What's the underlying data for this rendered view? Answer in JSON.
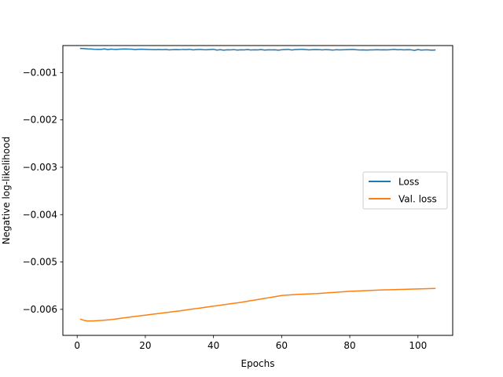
{
  "chart_data": {
    "type": "line",
    "xlabel": "Epochs",
    "ylabel": "Negative log-likelihood",
    "xlim": [
      -4.2,
      110.2
    ],
    "ylim": [
      -0.00655,
      -0.00043
    ],
    "xticks": [
      0,
      20,
      40,
      60,
      80,
      100
    ],
    "xtick_labels": [
      "0",
      "20",
      "40",
      "60",
      "80",
      "100"
    ],
    "yticks": [
      -0.001,
      -0.002,
      -0.003,
      -0.004,
      -0.005,
      -0.006
    ],
    "ytick_labels": [
      "−0.001",
      "−0.002",
      "−0.003",
      "−0.004",
      "−0.005",
      "−0.006"
    ],
    "grid": false,
    "legend_position": "center-right",
    "x": [
      1,
      2,
      3,
      4,
      5,
      6,
      7,
      8,
      9,
      10,
      11,
      12,
      13,
      14,
      15,
      16,
      17,
      18,
      19,
      20,
      21,
      22,
      23,
      24,
      25,
      26,
      27,
      28,
      29,
      30,
      31,
      32,
      33,
      34,
      35,
      36,
      37,
      38,
      39,
      40,
      41,
      42,
      43,
      44,
      45,
      46,
      47,
      48,
      49,
      50,
      51,
      52,
      53,
      54,
      55,
      56,
      57,
      58,
      59,
      60,
      61,
      62,
      63,
      64,
      65,
      66,
      67,
      68,
      69,
      70,
      71,
      72,
      73,
      74,
      75,
      76,
      77,
      78,
      79,
      80,
      81,
      82,
      83,
      84,
      85,
      86,
      87,
      88,
      89,
      90,
      91,
      92,
      93,
      94,
      95,
      96,
      97,
      98,
      99,
      100,
      101,
      102,
      103,
      104,
      105
    ],
    "series": [
      {
        "name": "Loss",
        "color": "#1f77b4",
        "values": [
          -0.00049,
          -0.000495,
          -0.0005,
          -0.000502,
          -0.000508,
          -0.000511,
          -0.00051,
          -0.0005,
          -0.000515,
          -0.000505,
          -0.000512,
          -0.000508,
          -0.000505,
          -0.000503,
          -0.000504,
          -0.000506,
          -0.000515,
          -0.000508,
          -0.000507,
          -0.00051,
          -0.000512,
          -0.000515,
          -0.000517,
          -0.000514,
          -0.000518,
          -0.000513,
          -0.000522,
          -0.000517,
          -0.000515,
          -0.000518,
          -0.000512,
          -0.000515,
          -0.00051,
          -0.000521,
          -0.000515,
          -0.000512,
          -0.000517,
          -0.00052,
          -0.000515,
          -0.00051,
          -0.000525,
          -0.000517,
          -0.000528,
          -0.000519,
          -0.000522,
          -0.000516,
          -0.000525,
          -0.00052,
          -0.000521,
          -0.000515,
          -0.000524,
          -0.000519,
          -0.000522,
          -0.000515,
          -0.000525,
          -0.00052,
          -0.000521,
          -0.000519,
          -0.000528,
          -0.000519,
          -0.000515,
          -0.000512,
          -0.000523,
          -0.000515,
          -0.000512,
          -0.00051,
          -0.000515,
          -0.000521,
          -0.000518,
          -0.000515,
          -0.000518,
          -0.000522,
          -0.000516,
          -0.00052,
          -0.000525,
          -0.000518,
          -0.000521,
          -0.000519,
          -0.000516,
          -0.000515,
          -0.000513,
          -0.00052,
          -0.000523,
          -0.000522,
          -0.000526,
          -0.000521,
          -0.000522,
          -0.000517,
          -0.000522,
          -0.000519,
          -0.000522,
          -0.000518,
          -0.000511,
          -0.000519,
          -0.000516,
          -0.000521,
          -0.000518,
          -0.00052,
          -0.000532,
          -0.000515,
          -0.000525,
          -0.000522,
          -0.000521,
          -0.000527,
          -0.000524
        ]
      },
      {
        "name": "Val. loss",
        "color": "#ff7f0e",
        "values": [
          -0.00621,
          -0.006232,
          -0.006245,
          -0.006246,
          -0.006243,
          -0.00624,
          -0.006235,
          -0.006229,
          -0.006223,
          -0.006216,
          -0.006207,
          -0.006198,
          -0.006188,
          -0.006178,
          -0.006168,
          -0.006159,
          -0.00615,
          -0.006141,
          -0.006132,
          -0.006123,
          -0.006114,
          -0.006105,
          -0.006096,
          -0.006087,
          -0.006078,
          -0.006069,
          -0.00606,
          -0.006051,
          -0.006042,
          -0.006033,
          -0.006023,
          -0.006013,
          -0.006003,
          -0.005993,
          -0.005983,
          -0.005973,
          -0.005963,
          -0.005953,
          -0.005943,
          -0.005933,
          -0.005923,
          -0.005913,
          -0.005903,
          -0.005893,
          -0.005883,
          -0.005873,
          -0.005863,
          -0.005853,
          -0.005841,
          -0.005829,
          -0.005817,
          -0.005805,
          -0.005793,
          -0.005781,
          -0.005769,
          -0.005757,
          -0.005745,
          -0.005733,
          -0.005721,
          -0.005709,
          -0.005702,
          -0.005697,
          -0.005692,
          -0.005688,
          -0.005684,
          -0.005681,
          -0.005678,
          -0.005675,
          -0.005672,
          -0.005669,
          -0.005664,
          -0.005659,
          -0.005654,
          -0.005649,
          -0.005644,
          -0.005639,
          -0.005634,
          -0.005629,
          -0.005624,
          -0.005619,
          -0.005616,
          -0.005613,
          -0.00561,
          -0.005607,
          -0.005604,
          -0.005601,
          -0.005598,
          -0.005595,
          -0.005592,
          -0.005589,
          -0.005587,
          -0.005585,
          -0.005583,
          -0.005581,
          -0.005579,
          -0.005577,
          -0.005575,
          -0.005573,
          -0.005571,
          -0.005569,
          -0.005567,
          -0.005565,
          -0.005563,
          -0.005561,
          -0.005559
        ]
      }
    ]
  }
}
